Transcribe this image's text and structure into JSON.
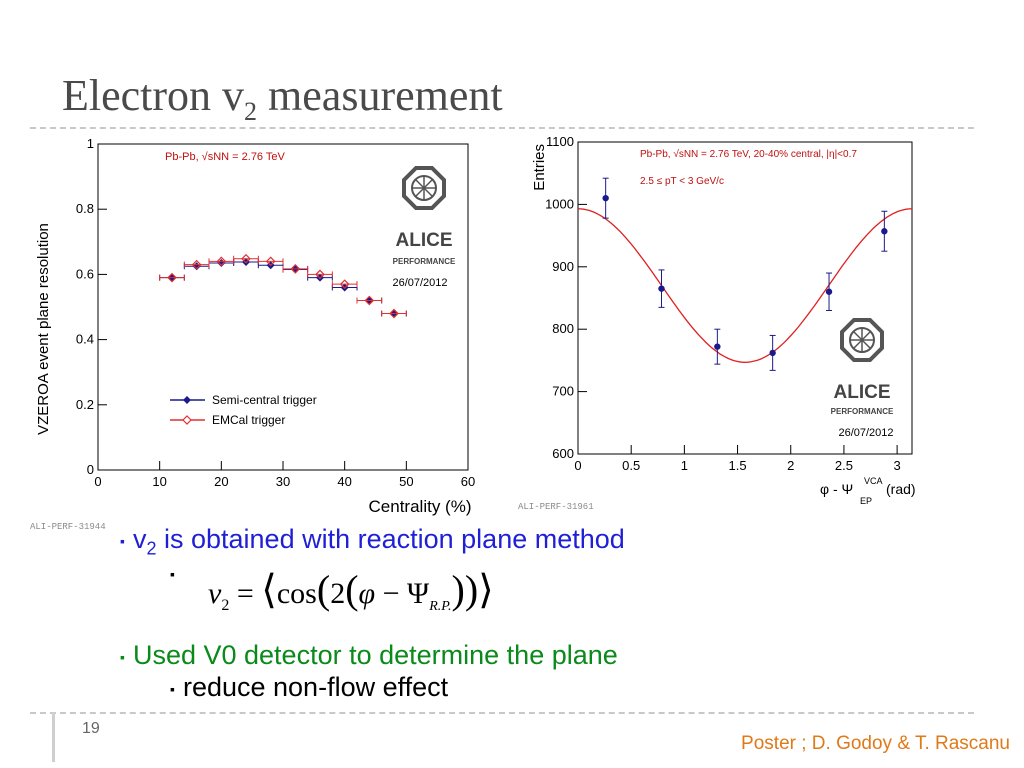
{
  "slide": {
    "title_main": "Electron v",
    "title_sub": "2",
    "title_rest": " measurement",
    "page_number": "19",
    "footer": "Poster ;  D. Godoy & T. Rascanu",
    "bullet1_a": "v",
    "bullet1_sub": "2",
    "bullet1_b": " is obtained with reaction plane method",
    "bullet2": "Used V0 detector to determine the plane",
    "bullet3": "reduce non-flow effect",
    "bullet_marker": "▪",
    "formula": {
      "v": "v",
      "v_sub": "2",
      "eq": " = ",
      "lang": "⟨",
      "cos": "cos",
      "lparen": "(",
      "two": "2",
      "lparen2": "(",
      "phi": "φ",
      "minus": " − ",
      "psi": "Ψ",
      "psi_sub": "R.P.",
      "rparen": "))",
      "rang": "⟩"
    }
  },
  "chart_data": [
    {
      "type": "scatter",
      "ylabel": "VZEROA event plane resolution",
      "xlabel": "Centrality (%)",
      "xlim": [
        0,
        60
      ],
      "ylim": [
        0,
        1
      ],
      "x_ticks": [
        "0",
        "10",
        "20",
        "30",
        "40",
        "50",
        "60"
      ],
      "y_ticks": [
        "0",
        "0.2",
        "0.4",
        "0.6",
        "0.8",
        "1"
      ],
      "annotation": "Pb-Pb, √sNN = 2.76 TeV",
      "logo_text": "ALICE",
      "logo_sub": "PERFORMANCE",
      "date": "26/07/2012",
      "perf_tag": "ALI-PERF-31944",
      "legend_position": "bottom-left",
      "series": [
        {
          "name": "Semi-central trigger",
          "color": "#1a1a8c",
          "marker": "filled-diamond",
          "x": [
            12,
            16,
            20,
            24,
            28,
            32,
            36,
            40,
            44,
            48
          ],
          "xerr": 2,
          "y": [
            0.59,
            0.625,
            0.635,
            0.638,
            0.628,
            0.615,
            0.59,
            0.56,
            0.52,
            0.48
          ]
        },
        {
          "name": "EMCal trigger",
          "color": "#e03030",
          "marker": "open-diamond",
          "x": [
            12,
            16,
            20,
            24,
            28,
            32,
            36,
            40,
            44,
            48
          ],
          "xerr": 2,
          "y": [
            0.59,
            0.63,
            0.64,
            0.648,
            0.64,
            0.617,
            0.6,
            0.57,
            0.52,
            0.48
          ]
        }
      ]
    },
    {
      "type": "scatter",
      "ylabel": "Entries",
      "xlabel": "φ - Ψ",
      "xlabel_sup": "VCA",
      "xlabel_sub": "EP",
      "xlabel_unit": "(rad)",
      "xlim": [
        0,
        3.14
      ],
      "ylim": [
        600,
        1100
      ],
      "x_ticks": [
        "0",
        "0.5",
        "1",
        "1.5",
        "2",
        "2.5",
        "3"
      ],
      "y_ticks": [
        "600",
        "700",
        "800",
        "900",
        "1000",
        "1100"
      ],
      "annotation1": "Pb-Pb, √sNN = 2.76 TeV, 20-40% central, |η|<0.7",
      "annotation2": "2.5 ≤ pT < 3 GeV/c",
      "logo_text": "ALICE",
      "logo_sub": "PERFORMANCE",
      "date": "26/07/2012",
      "perf_tag": "ALI-PERF-31961",
      "points": {
        "color": "#1a1a8c",
        "x": [
          0.26,
          0.785,
          1.31,
          1.83,
          2.36,
          2.88
        ],
        "y": [
          1010,
          865,
          772,
          762,
          860,
          957
        ],
        "yerr": [
          32,
          30,
          28,
          28,
          30,
          32
        ]
      },
      "fit": {
        "color": "#e02020",
        "offset": 870,
        "amplitude": 123
      }
    }
  ]
}
